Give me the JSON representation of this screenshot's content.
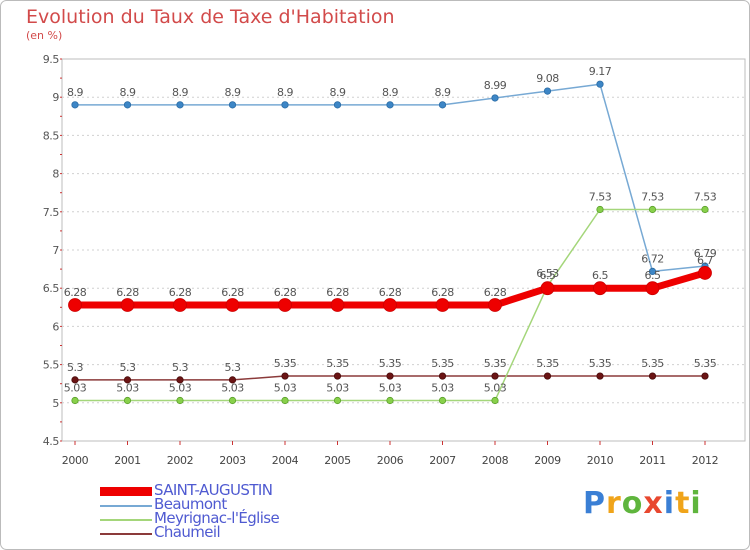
{
  "chart_data": {
    "type": "line",
    "title": "Evolution du Taux de Taxe d'Habitation",
    "subtitle": "(en %)",
    "xlabel": "",
    "ylabel": "",
    "categories": [
      "2000",
      "2001",
      "2002",
      "2003",
      "2004",
      "2005",
      "2006",
      "2007",
      "2008",
      "2009",
      "2010",
      "2011",
      "2012"
    ],
    "ylim": [
      4.5,
      9.5
    ],
    "yticks": [
      4.5,
      5,
      5.5,
      6,
      6.5,
      7,
      7.5,
      8,
      8.5,
      9,
      9.5
    ],
    "ytick_labels": [
      "4.5",
      "5",
      "5.5",
      "6",
      "6.5",
      "7",
      "7.5",
      "8",
      "8.5",
      "9",
      "9.5"
    ],
    "grid": "horizontal-dashed",
    "legend_position": "bottom-left",
    "series": [
      {
        "name": "SAINT-AUGUSTIN",
        "color": "#ee0000",
        "values": [
          6.28,
          6.28,
          6.28,
          6.28,
          6.28,
          6.28,
          6.28,
          6.28,
          6.28,
          6.5,
          6.5,
          6.5,
          6.7
        ],
        "labels": [
          "6.28",
          "6.28",
          "6.28",
          "6.28",
          "6.28",
          "6.28",
          "6.28",
          "6.28",
          "6.28",
          "6.5",
          "6.5",
          "6.5",
          "6.7"
        ]
      },
      {
        "name": "Beaumont",
        "color": "#77a9d4",
        "values": [
          8.9,
          8.9,
          8.9,
          8.9,
          8.9,
          8.9,
          8.9,
          8.9,
          8.99,
          9.08,
          9.17,
          6.72,
          6.79
        ],
        "labels": [
          "8.9",
          "8.9",
          "8.9",
          "8.9",
          "8.9",
          "8.9",
          "8.9",
          "8.9",
          "8.99",
          "9.08",
          "9.17",
          "6.72",
          "6.79"
        ]
      },
      {
        "name": "Meyrignac-l'Église",
        "color": "#a4d67a",
        "values": [
          5.03,
          5.03,
          5.03,
          5.03,
          5.03,
          5.03,
          5.03,
          5.03,
          5.03,
          6.53,
          7.53,
          7.53,
          7.53
        ],
        "labels": [
          "5.03",
          "5.03",
          "5.03",
          "5.03",
          "5.03",
          "5.03",
          "5.03",
          "5.03",
          "5.03",
          "6.53",
          "7.53",
          "7.53",
          "7.53"
        ]
      },
      {
        "name": "Chaumeil",
        "color": "#8b3a3a",
        "values": [
          5.3,
          5.3,
          5.3,
          5.3,
          5.35,
          5.35,
          5.35,
          5.35,
          5.35,
          5.35,
          5.35,
          5.35,
          5.35
        ],
        "labels": [
          "5.3",
          "5.3",
          "5.3",
          "5.3",
          "5.35",
          "5.35",
          "5.35",
          "5.35",
          "5.35",
          "5.35",
          "5.35",
          "5.35",
          "5.35"
        ]
      }
    ]
  },
  "logo": {
    "text": "Proxiti",
    "colors": [
      "#3a7fd5",
      "#f0a41a",
      "#5fb53d",
      "#e8472f",
      "#3a7fd5",
      "#f0a41a",
      "#5fb53d"
    ]
  }
}
